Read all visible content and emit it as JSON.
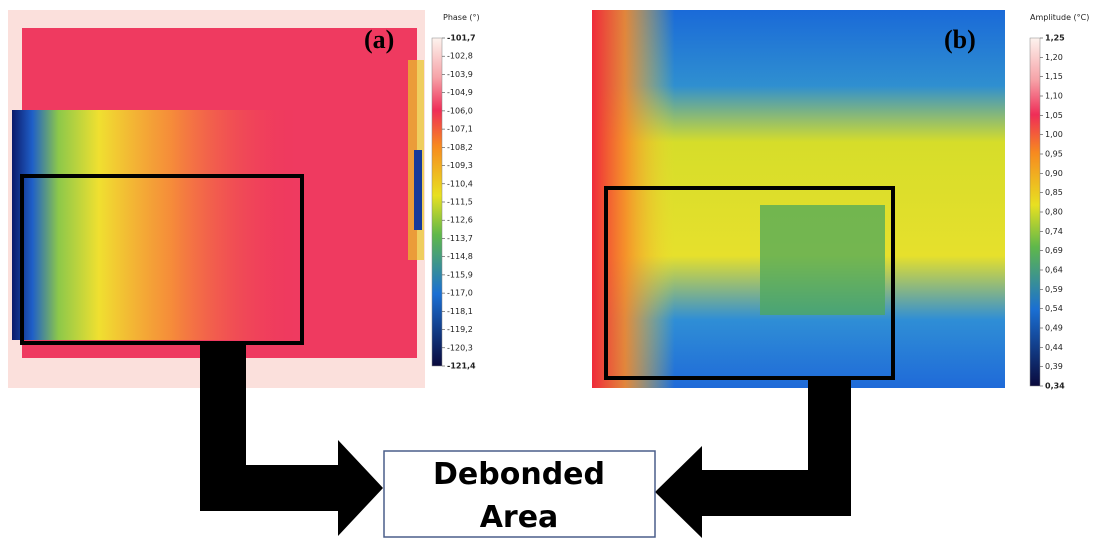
{
  "panels": [
    {
      "label": "(a)",
      "colorbar_title": "Phase (°)",
      "ticks": [
        "-101,7",
        "-102,8",
        "-103,9",
        "-104,9",
        "-106,0",
        "-107,1",
        "-108,2",
        "-109,3",
        "-110,4",
        "-111,5",
        "-112,6",
        "-113,7",
        "-114,8",
        "-115,9",
        "-117,0",
        "-118,1",
        "-119,2",
        "-120,3",
        "-121,4"
      ]
    },
    {
      "label": "(b)",
      "colorbar_title": "Amplitude (°C)",
      "ticks": [
        "1,25",
        "1,20",
        "1,15",
        "1,10",
        "1,05",
        "1,00",
        "0,95",
        "0,90",
        "0,85",
        "0,80",
        "0,74",
        "0,69",
        "0,64",
        "0,59",
        "0,54",
        "0,49",
        "0,44",
        "0,39",
        "0,34"
      ]
    }
  ],
  "callout": {
    "line1": "Debonded",
    "line2": "Area"
  }
}
